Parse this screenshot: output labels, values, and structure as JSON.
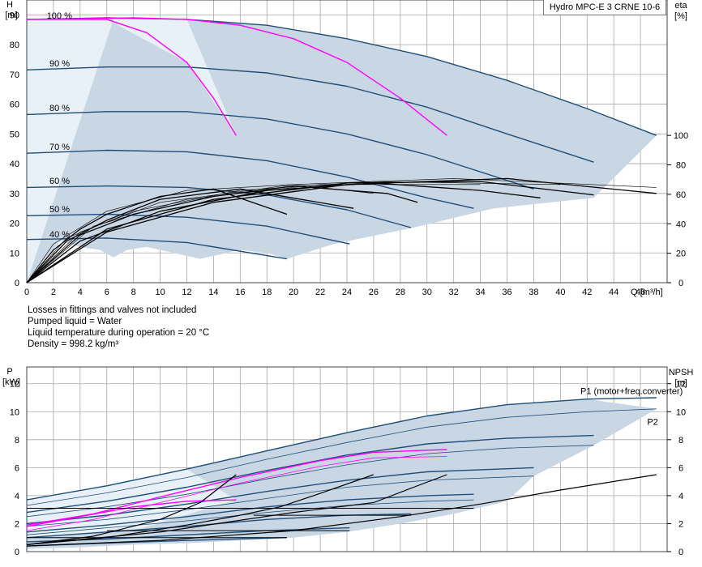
{
  "product_label": "Hydro MPC-E 3 CRNE 10-6",
  "notes": [
    "Losses in fittings and valves not included",
    "Pumped liquid = Water",
    "Liquid temperature during operation = 20 °C",
    "Density = 998.2 kg/m³"
  ],
  "colors": {
    "speed_curve": "#1f4e79",
    "system_curve": "#ff00ff",
    "efficiency_curve": "#000000",
    "operating_area": "#c9d7e5",
    "operating_area_light": "#e8f0f8",
    "grid": "#a6a6a6"
  },
  "chart_data": [
    {
      "type": "line",
      "id": "qh",
      "ylabel_left": [
        "H",
        "[m]"
      ],
      "ylabel_right": [
        "eta",
        "[%]"
      ],
      "xlabel": "Q [m³/h]",
      "xlim": [
        0,
        48
      ],
      "ylim": [
        0,
        95
      ],
      "xticks": [
        0,
        2,
        4,
        6,
        8,
        10,
        12,
        14,
        16,
        18,
        20,
        22,
        24,
        26,
        28,
        30,
        32,
        34,
        36,
        38,
        40,
        42,
        44,
        46,
        48
      ],
      "xtick_labels": [
        "0",
        "2",
        "4",
        "6",
        "8",
        "10",
        "12",
        "14",
        "16",
        "18",
        "20",
        "22",
        "24",
        "26",
        "28",
        "30",
        "32",
        "34",
        "36",
        "38",
        "40",
        "42",
        "44",
        "46",
        "48"
      ],
      "yticks": [
        0,
        10,
        20,
        30,
        40,
        50,
        60,
        70,
        80,
        90
      ],
      "ytick_labels": [
        "0",
        "10",
        "20",
        "30",
        "40",
        "50",
        "60",
        "70",
        "80",
        "90"
      ],
      "eta_ticks": [
        0,
        20,
        40,
        60,
        80,
        100
      ],
      "eta_tick_labels": [
        "0",
        "20",
        "40",
        "60",
        "80",
        "100"
      ],
      "eta_scale": {
        "h_at_0": 0,
        "h_at_100": 49.5
      },
      "speed_labels": [
        {
          "text": "100 %",
          "x": 1.5,
          "y": 89.5
        },
        {
          "text": "90 %",
          "x": 1.7,
          "y": 73.5
        },
        {
          "text": "80 %",
          "x": 1.7,
          "y": 58.5
        },
        {
          "text": "70 %",
          "x": 1.7,
          "y": 45.5
        },
        {
          "text": "60 %",
          "x": 1.7,
          "y": 34
        },
        {
          "text": "50 %",
          "x": 1.7,
          "y": 24.5
        },
        {
          "text": "40 %",
          "x": 1.7,
          "y": 16
        }
      ],
      "series": [
        {
          "role": "speed",
          "pct": 100,
          "x": [
            0,
            6,
            12,
            18,
            24,
            30,
            36,
            42,
            47.2
          ],
          "y": [
            88.5,
            89,
            88.5,
            86.5,
            82,
            76,
            68,
            58.5,
            49.5
          ]
        },
        {
          "role": "speed",
          "pct": 90,
          "x": [
            0,
            6,
            12,
            18,
            24,
            30,
            36,
            42.5
          ],
          "y": [
            71.5,
            72.5,
            72.5,
            70.5,
            66,
            59,
            50,
            40.5
          ]
        },
        {
          "role": "speed",
          "pct": 80,
          "x": [
            0,
            6,
            12,
            18,
            24,
            30,
            38
          ],
          "y": [
            56.5,
            57.5,
            57.5,
            55,
            50,
            43,
            31.5
          ]
        },
        {
          "role": "speed",
          "pct": 70,
          "x": [
            0,
            6,
            12,
            18,
            24,
            30,
            33.5
          ],
          "y": [
            43.5,
            44.5,
            44,
            41,
            35.5,
            28.5,
            25
          ]
        },
        {
          "role": "speed",
          "pct": 60,
          "x": [
            0,
            6,
            12,
            18,
            24,
            28.8
          ],
          "y": [
            32,
            32.5,
            32,
            29.5,
            24.5,
            18.5
          ]
        },
        {
          "role": "speed",
          "pct": 50,
          "x": [
            0,
            6,
            12,
            18,
            24.2
          ],
          "y": [
            22.5,
            23,
            22,
            19,
            13
          ]
        },
        {
          "role": "speed",
          "pct": 40,
          "x": [
            0,
            6,
            12,
            19.5
          ],
          "y": [
            14.5,
            15,
            13.5,
            8
          ]
        },
        {
          "role": "system",
          "x": [
            0,
            6,
            9,
            12,
            14,
            15.7
          ],
          "y": [
            88.5,
            88.5,
            84,
            74,
            62,
            49.5
          ]
        },
        {
          "role": "system",
          "x": [
            0,
            8,
            12,
            16,
            20,
            24,
            28,
            31.5
          ],
          "y": [
            88.5,
            89,
            88.5,
            86.5,
            82,
            74,
            62,
            49.5
          ]
        },
        {
          "role": "eta",
          "x": [
            0,
            2,
            4,
            6,
            10,
            14,
            19.5
          ],
          "y": [
            0,
            11,
            18,
            23,
            29,
            31.5,
            23
          ]
        },
        {
          "role": "eta",
          "x": [
            0,
            3,
            6,
            10,
            16,
            24.5
          ],
          "y": [
            0,
            14,
            21,
            28,
            31.5,
            25
          ]
        },
        {
          "role": "eta",
          "x": [
            0,
            4,
            8,
            14,
            20,
            27,
            29.3
          ],
          "y": [
            0,
            16,
            23,
            29,
            32.5,
            30,
            27
          ]
        },
        {
          "role": "eta",
          "x": [
            0,
            4,
            10,
            18,
            26,
            34,
            38.5
          ],
          "y": [
            0,
            14,
            24,
            31,
            33.5,
            31,
            28.5
          ]
        },
        {
          "role": "eta",
          "x": [
            0,
            6,
            14,
            24,
            34,
            42.5
          ],
          "y": [
            0,
            18,
            28,
            33.5,
            34,
            29.5
          ]
        },
        {
          "role": "eta",
          "x": [
            0,
            6,
            14,
            24,
            36,
            47.2
          ],
          "y": [
            0,
            17,
            27,
            33,
            35,
            30
          ]
        },
        {
          "role": "eta_thin",
          "x": [
            0,
            4,
            10,
            20,
            32,
            47.2
          ],
          "y": [
            0,
            17,
            27,
            33,
            35,
            32
          ]
        },
        {
          "role": "eta_thin",
          "x": [
            0,
            3,
            8,
            16,
            26,
            40
          ],
          "y": [
            0,
            15,
            24,
            31,
            34,
            33
          ]
        },
        {
          "role": "eta_thin",
          "x": [
            0,
            5,
            12,
            22,
            34
          ],
          "y": [
            0,
            19,
            28,
            33,
            33
          ]
        },
        {
          "role": "eta_thin",
          "x": [
            0,
            2,
            6,
            12,
            20,
            26
          ],
          "y": [
            0,
            13,
            24,
            31,
            33,
            30
          ]
        }
      ],
      "operating_area": {
        "x": [
          0,
          2.5,
          4,
          5.5,
          6.5,
          7.5,
          9,
          11,
          13,
          14,
          16,
          18,
          19.5,
          23,
          29,
          35,
          42.5,
          47.2,
          42,
          36,
          30,
          24,
          18,
          12,
          6,
          0
        ],
        "y": [
          0,
          14,
          12,
          11,
          8.5,
          11,
          12,
          10,
          8,
          9,
          11,
          10,
          8,
          13,
          18.5,
          25,
          28.5,
          49.5,
          58.5,
          68,
          76,
          82,
          86.5,
          88.5,
          89,
          88.5
        ]
      },
      "light_area": {
        "x": [
          0,
          6.5,
          12,
          15.7,
          12,
          6,
          0
        ],
        "y": [
          0,
          88.5,
          88.5,
          49.5,
          74,
          88.5,
          88.5
        ]
      }
    },
    {
      "type": "line",
      "id": "power",
      "ylabel_left": [
        "P",
        "[kW]"
      ],
      "ylabel_right": [
        "NPSH",
        "[m]"
      ],
      "xlim": [
        0,
        48
      ],
      "ylim": [
        0,
        13.2
      ],
      "xticks": [
        0,
        2,
        4,
        6,
        8,
        10,
        12,
        14,
        16,
        18,
        20,
        22,
        24,
        26,
        28,
        30,
        32,
        34,
        36,
        38,
        40,
        42,
        44,
        46,
        48
      ],
      "yticks": [
        0,
        2,
        4,
        6,
        8,
        10,
        12
      ],
      "ytick_labels": [
        "0",
        "2",
        "4",
        "6",
        "8",
        "10",
        "12"
      ],
      "npsh_ticks": [
        0,
        2,
        4,
        6,
        8,
        10,
        12
      ],
      "npsh_tick_labels": [
        "0",
        "2",
        "4",
        "6",
        "8",
        "10",
        "12"
      ],
      "curve_labels": [
        {
          "text": "P1 (motor+freq.converter)",
          "x": 41.5,
          "y": 11.5
        },
        {
          "text": "P2",
          "x": 46.5,
          "y": 9.3
        }
      ],
      "series": [
        {
          "role": "p1",
          "pct": 100,
          "x": [
            0,
            6,
            12,
            18,
            24,
            30,
            36,
            42,
            47.2
          ],
          "y": [
            3.7,
            4.7,
            5.9,
            7.2,
            8.5,
            9.7,
            10.5,
            10.9,
            11.0
          ]
        },
        {
          "role": "p2",
          "pct": 100,
          "x": [
            0,
            6,
            12,
            18,
            24,
            30,
            36,
            42,
            47.2
          ],
          "y": [
            3.3,
            4.2,
            5.3,
            6.6,
            7.8,
            8.9,
            9.6,
            10.0,
            10.2
          ]
        },
        {
          "role": "p1",
          "pct": 90,
          "x": [
            0,
            6,
            12,
            18,
            24,
            30,
            36,
            42.5
          ],
          "y": [
            2.8,
            3.6,
            4.6,
            5.8,
            6.9,
            7.7,
            8.1,
            8.3
          ]
        },
        {
          "role": "p2",
          "pct": 90,
          "x": [
            0,
            6,
            12,
            18,
            24,
            30,
            36,
            42.5
          ],
          "y": [
            2.5,
            3.2,
            4.1,
            5.2,
            6.2,
            7.0,
            7.4,
            7.6
          ]
        },
        {
          "role": "p1",
          "pct": 80,
          "x": [
            0,
            6,
            12,
            18,
            24,
            30,
            38
          ],
          "y": [
            2.0,
            2.6,
            3.4,
            4.3,
            5.1,
            5.7,
            6.0
          ]
        },
        {
          "role": "p2",
          "pct": 80,
          "x": [
            0,
            6,
            12,
            18,
            24,
            30,
            38
          ],
          "y": [
            1.8,
            2.3,
            3.0,
            3.8,
            4.6,
            5.1,
            5.4
          ]
        },
        {
          "role": "p1",
          "pct": 70,
          "x": [
            0,
            6,
            12,
            18,
            24,
            30,
            33.5
          ],
          "y": [
            1.4,
            1.9,
            2.5,
            3.2,
            3.7,
            4.0,
            4.1
          ]
        },
        {
          "role": "p2",
          "pct": 70,
          "x": [
            0,
            6,
            12,
            18,
            24,
            30,
            33.5
          ],
          "y": [
            1.2,
            1.7,
            2.2,
            2.8,
            3.3,
            3.6,
            3.7
          ]
        },
        {
          "role": "p1",
          "pct": 60,
          "x": [
            0,
            6,
            12,
            18,
            24,
            28.8
          ],
          "y": [
            1.0,
            1.4,
            1.8,
            2.3,
            2.6,
            2.7
          ]
        },
        {
          "role": "p1",
          "pct": 50,
          "x": [
            0,
            6,
            12,
            18,
            24.2
          ],
          "y": [
            0.7,
            0.9,
            1.2,
            1.5,
            1.7
          ]
        },
        {
          "role": "p1",
          "pct": 40,
          "x": [
            0,
            6,
            12,
            19.5
          ],
          "y": [
            0.4,
            0.6,
            0.8,
            1.0
          ]
        },
        {
          "role": "system",
          "x": [
            0,
            4,
            8,
            12,
            15.7
          ],
          "y": [
            1.8,
            2.5,
            3.2,
            3.6,
            3.7
          ]
        },
        {
          "role": "system",
          "x": [
            0,
            5,
            10,
            16,
            22,
            26,
            31.5
          ],
          "y": [
            1.9,
            2.7,
            3.9,
            5.3,
            6.5,
            7.1,
            7.3
          ]
        },
        {
          "role": "system_thin",
          "x": [
            0,
            5,
            10,
            16,
            22,
            26,
            31.5
          ],
          "y": [
            1.5,
            2.3,
            3.5,
            4.9,
            6.1,
            6.7,
            6.8
          ]
        },
        {
          "role": "npsh",
          "x": [
            0,
            10,
            20,
            28,
            34,
            40,
            47.2
          ],
          "y": [
            0.4,
            0.8,
            1.5,
            2.5,
            3.4,
            4.4,
            5.5
          ]
        },
        {
          "role": "npsh",
          "x": [
            0,
            6,
            12,
            16,
            19,
            21.5,
            26
          ],
          "y": [
            0.5,
            1.0,
            1.9,
            2.6,
            3.2,
            4.0,
            5.5
          ]
        },
        {
          "role": "npsh",
          "x": [
            0,
            5,
            10,
            13,
            15.7
          ],
          "y": [
            0.5,
            1.1,
            2.3,
            3.5,
            5.5
          ]
        },
        {
          "role": "npsh",
          "x": [
            0,
            10,
            20,
            26,
            29,
            31.5
          ],
          "y": [
            0.5,
            1.4,
            2.8,
            3.5,
            4.6,
            5.5
          ]
        },
        {
          "role": "npsh_flat",
          "x": [
            17,
            28.8
          ],
          "y": [
            2.6,
            2.6
          ]
        },
        {
          "role": "npsh_flat",
          "x": [
            0,
            19.5
          ],
          "y": [
            1.0,
            1.0
          ]
        },
        {
          "role": "npsh_flat",
          "x": [
            0,
            33.5
          ],
          "y": [
            3.1,
            3.1
          ]
        },
        {
          "role": "npsh_flat",
          "x": [
            6,
            24.2
          ],
          "y": [
            1.5,
            1.5
          ]
        }
      ],
      "operating_area": {
        "x": [
          0,
          4,
          8,
          12,
          16,
          20,
          24,
          28,
          32,
          36,
          38,
          42.5,
          47.2,
          42,
          36,
          30,
          24,
          18,
          12,
          6,
          0
        ],
        "y": [
          0.2,
          0.3,
          0.5,
          0.6,
          0.8,
          1.0,
          1.4,
          2.0,
          2.7,
          3.6,
          5.4,
          7.6,
          10.2,
          10.9,
          10.5,
          9.7,
          8.5,
          7.2,
          5.9,
          4.7,
          3.7
        ]
      },
      "light_area": {
        "x": [
          0,
          12,
          15.7,
          8,
          0
        ],
        "y": [
          3.7,
          5.9,
          3.7,
          1.5,
          1.0
        ]
      }
    }
  ]
}
